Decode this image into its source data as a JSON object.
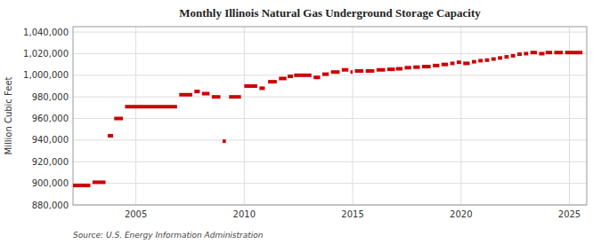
{
  "chart_data": {
    "type": "step",
    "title": "Monthly Illinois Natural Gas Underground Storage Capacity",
    "ylabel": "Million Cubic Feet",
    "source": "Source: U.S. Energy Information Administration",
    "color": "#cc0000",
    "grid": true,
    "xlim": [
      2002.1,
      2025.8
    ],
    "xticks": [
      2005,
      2010,
      2015,
      2020,
      2025
    ],
    "ylim": [
      880000,
      1045000
    ],
    "yticks": [
      {
        "value": 880000,
        "label": "880,000"
      },
      {
        "value": 900000,
        "label": "900,000"
      },
      {
        "value": 920000,
        "label": "920,000"
      },
      {
        "value": 940000,
        "label": "940,000"
      },
      {
        "value": 960000,
        "label": "960,000"
      },
      {
        "value": 980000,
        "label": "980,000"
      },
      {
        "value": 1000000,
        "label": "1,000,000"
      },
      {
        "value": 1020000,
        "label": "1,020,000"
      },
      {
        "value": 1040000,
        "label": "1,040,000"
      }
    ],
    "x_start": [
      2002.1,
      2003.0,
      2003.7,
      2004.0,
      2004.5,
      2007.0,
      2007.7,
      2008.05,
      2008.5,
      2009.0,
      2009.3,
      2010.0,
      2010.7,
      2011.1,
      2011.6,
      2012.0,
      2012.3,
      2013.2,
      2013.6,
      2014.0,
      2014.5,
      2014.9,
      2015.1,
      2015.6,
      2016.1,
      2016.6,
      2017.0,
      2017.4,
      2017.8,
      2018.2,
      2018.7,
      2019.1,
      2019.5,
      2019.8,
      2020.1,
      2020.5,
      2020.8,
      2021.1,
      2021.4,
      2021.7,
      2022.0,
      2022.3,
      2022.6,
      2022.9,
      2023.2,
      2023.6,
      2023.9,
      2024.3,
      2024.8
    ],
    "x_end": [
      2002.9,
      2003.6,
      2003.95,
      2004.4,
      2006.9,
      2007.6,
      2007.95,
      2008.4,
      2008.9,
      2009.15,
      2009.85,
      2010.6,
      2010.95,
      2011.5,
      2011.95,
      2012.25,
      2013.1,
      2013.5,
      2013.9,
      2014.4,
      2014.8,
      2015.0,
      2015.5,
      2016.0,
      2016.5,
      2016.95,
      2017.3,
      2017.7,
      2018.1,
      2018.6,
      2019.0,
      2019.4,
      2019.7,
      2020.0,
      2020.4,
      2020.7,
      2021.0,
      2021.3,
      2021.6,
      2021.9,
      2022.2,
      2022.5,
      2022.8,
      2023.1,
      2023.5,
      2023.85,
      2024.2,
      2024.7,
      2025.6
    ],
    "values": [
      898000,
      901000,
      944000,
      960000,
      971000,
      982000,
      985000,
      983000,
      980000,
      939000,
      980000,
      990000,
      988000,
      994000,
      997000,
      999000,
      1000000,
      998000,
      1001000,
      1003000,
      1005000,
      1003000,
      1004000,
      1004000,
      1005000,
      1005500,
      1006000,
      1007000,
      1007500,
      1008000,
      1009000,
      1010000,
      1011000,
      1012000,
      1011000,
      1012500,
      1013500,
      1014000,
      1015000,
      1016000,
      1017000,
      1018000,
      1019500,
      1020000,
      1021000,
      1020000,
      1021000,
      1021000,
      1021000
    ]
  }
}
